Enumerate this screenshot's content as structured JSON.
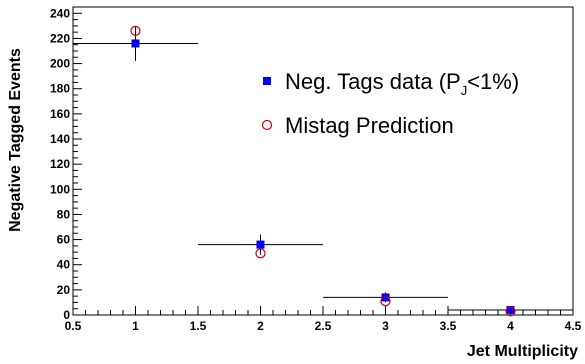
{
  "chart_data": {
    "type": "scatter",
    "xlabel": "Jet Multiplicity",
    "ylabel": "Negative Tagged Events",
    "xlim": [
      0.5,
      4.5
    ],
    "ylim": [
      0,
      245
    ],
    "x_ticks": [
      "0.5",
      "1",
      "1.5",
      "2",
      "2.5",
      "3",
      "3.5",
      "4",
      "4.5"
    ],
    "y_ticks": [
      "0",
      "20",
      "40",
      "60",
      "80",
      "100",
      "120",
      "140",
      "160",
      "180",
      "200",
      "220",
      "240"
    ],
    "grid": false,
    "legend_position": "top-right",
    "series": [
      {
        "name": "Neg. Tags data (P",
        "name_sub": "J",
        "name_tail": "<1%)",
        "marker": "filled-square",
        "color": "#0000ff",
        "points": [
          {
            "x": 1,
            "y": 216,
            "xerr": 0.5,
            "yerr_low": 14,
            "yerr_high": 14
          },
          {
            "x": 2,
            "y": 56,
            "xerr": 0.5,
            "yerr_low": 8,
            "yerr_high": 8
          },
          {
            "x": 3,
            "y": 14,
            "xerr": 0.5,
            "yerr_low": 4,
            "yerr_high": 4
          },
          {
            "x": 4,
            "y": 4,
            "xerr": 0.5,
            "yerr_low": 2,
            "yerr_high": 2
          }
        ]
      },
      {
        "name": "Mistag Prediction",
        "marker": "open-circle",
        "color": "#cc0000",
        "points": [
          {
            "x": 1,
            "y": 226
          },
          {
            "x": 2,
            "y": 49
          },
          {
            "x": 3,
            "y": 11
          },
          {
            "x": 4,
            "y": 3
          }
        ]
      }
    ]
  }
}
